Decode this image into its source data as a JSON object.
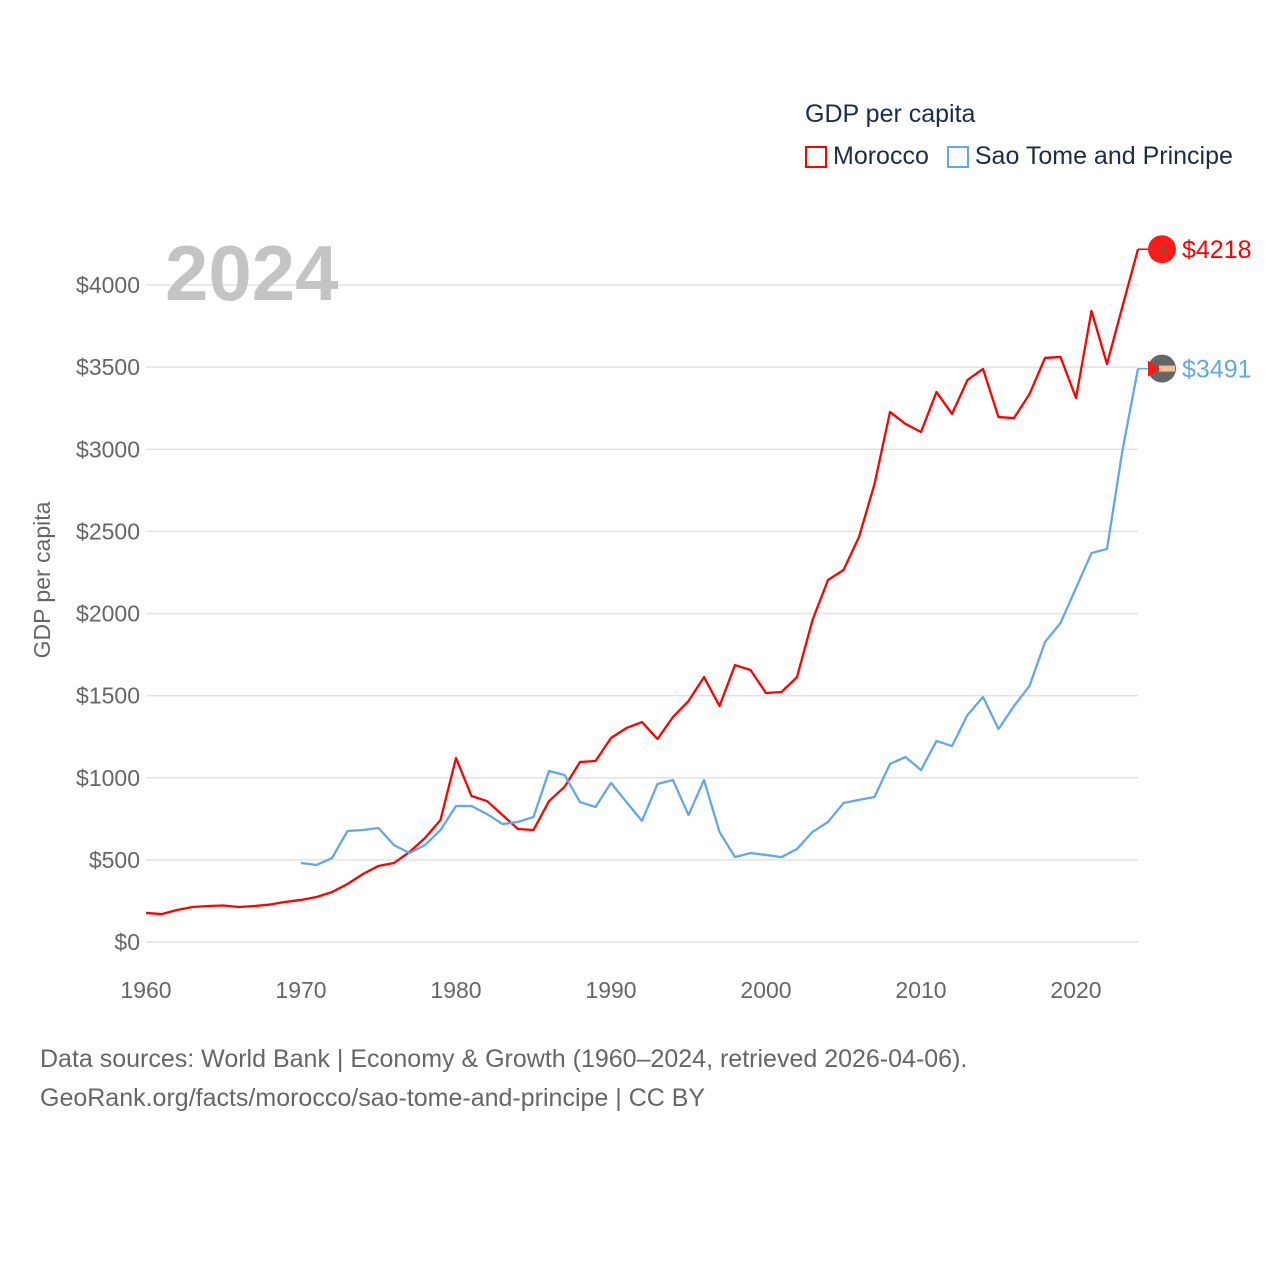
{
  "chart_data": {
    "type": "line",
    "title": "GDP per capita",
    "ylabel": "GDP per capita",
    "xlabel": "",
    "xlim": [
      1960,
      2024
    ],
    "ylim": [
      0,
      4300
    ],
    "x_ticks": [
      "1960",
      "1970",
      "1980",
      "1990",
      "2000",
      "2010",
      "2020"
    ],
    "x_tick_values": [
      1960,
      1970,
      1980,
      1990,
      2000,
      2010,
      2020
    ],
    "y_ticks": [
      "$0",
      "$500",
      "$1000",
      "$1500",
      "$2000",
      "$2500",
      "$3000",
      "$3500",
      "$4000"
    ],
    "y_tick_values": [
      0,
      500,
      1000,
      1500,
      2000,
      2500,
      3000,
      3500,
      4000
    ],
    "grid": true,
    "legend_position": "top-right",
    "current_year": "2024",
    "series": [
      {
        "name": "Morocco",
        "color": "#ff0000",
        "end_label": "$4218",
        "start_year": 1960,
        "values": [
          177,
          170,
          195,
          213,
          219,
          222,
          213,
          219,
          228,
          244,
          256,
          274,
          304,
          353,
          414,
          463,
          481,
          548,
          633,
          743,
          1120,
          889,
          858,
          773,
          688,
          682,
          858,
          944,
          1096,
          1102,
          1242,
          1303,
          1339,
          1236,
          1370,
          1467,
          1613,
          1437,
          1686,
          1656,
          1516,
          1522,
          1613,
          1960,
          2204,
          2265,
          2466,
          2788,
          3227,
          3154,
          3105,
          3349,
          3215,
          3422,
          3489,
          3196,
          3190,
          3336,
          3556,
          3562,
          3312,
          3842,
          3519,
          3870,
          4218
        ]
      },
      {
        "name": "Sao Tome and Principe",
        "color": "#62a8e8",
        "end_label": "$3491",
        "start_year": 1970,
        "values": [
          481,
          469,
          511,
          676,
          682,
          694,
          590,
          542,
          590,
          682,
          828,
          828,
          779,
          718,
          731,
          761,
          1041,
          1017,
          852,
          822,
          968,
          852,
          737,
          962,
          986,
          773,
          986,
          670,
          517,
          542,
          530,
          517,
          566,
          670,
          731,
          846,
          865,
          883,
          1084,
          1126,
          1047,
          1224,
          1193,
          1382,
          1492,
          1297,
          1437,
          1559,
          1826,
          1942,
          2155,
          2368,
          2393,
          2995,
          3491
        ]
      }
    ]
  },
  "footer": {
    "line1": "Data sources: World Bank | Economy & Growth (1960–2024, retrieved 2026-04-06).",
    "line2": "GeoRank.org/facts/morocco/sao-tome-and-principe | CC BY"
  }
}
